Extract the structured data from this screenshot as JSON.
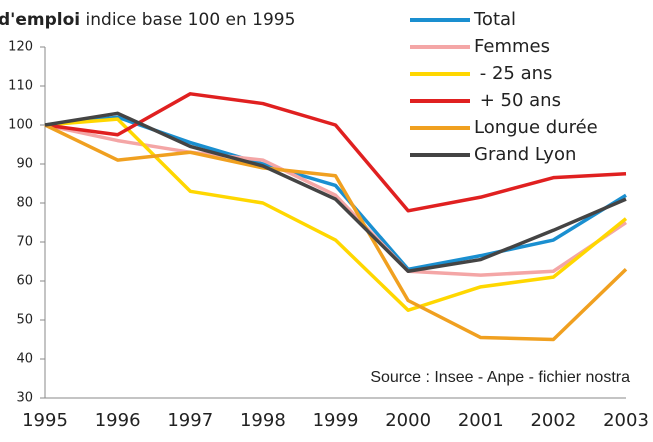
{
  "chart_data": {
    "type": "line",
    "title": "d'emploi",
    "subtitle": "indice base 100 en 1995",
    "annotation": "Source : Insee - Anpe - fichier nostra",
    "categories": [
      "1995",
      "1996",
      "1997",
      "1998",
      "1999",
      "2000",
      "2001",
      "2002",
      "2003"
    ],
    "series": [
      {
        "name": "Total",
        "color": "#1a8fd0",
        "values": [
          100,
          102,
          95.5,
          90,
          84.5,
          63,
          66.5,
          70.5,
          82
        ]
      },
      {
        "name": "Femmes",
        "color": "#f4a6a6",
        "values": [
          100,
          96,
          93,
          91,
          82,
          62.5,
          61.5,
          62.5,
          75
        ]
      },
      {
        "name": " - 25 ans",
        "color": "#ffd700",
        "values": [
          100,
          101.5,
          83,
          80,
          70.5,
          52.5,
          58.5,
          61,
          76
        ]
      },
      {
        "name": " + 50 ans",
        "color": "#e02020",
        "values": [
          100,
          97.5,
          108,
          105.5,
          100,
          78,
          81.5,
          86.5,
          87.5
        ]
      },
      {
        "name": "Longue durée",
        "color": "#f0a020",
        "values": [
          100,
          91,
          93,
          89,
          87,
          55,
          45.5,
          45,
          63
        ]
      },
      {
        "name": "Grand Lyon",
        "color": "#444444",
        "values": [
          100,
          103,
          94.5,
          89.5,
          81,
          62.5,
          65.5,
          73,
          81
        ]
      }
    ],
    "ylim": [
      30,
      120
    ],
    "yticks": [
      30,
      40,
      50,
      60,
      70,
      80,
      90,
      100,
      110,
      120
    ],
    "grid": false,
    "legend": "top-right"
  }
}
